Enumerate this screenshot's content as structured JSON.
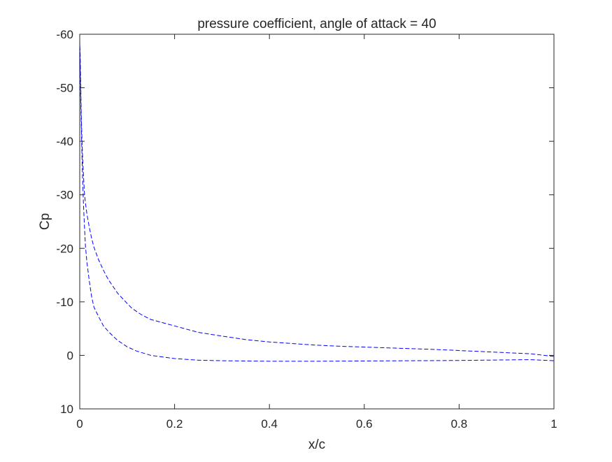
{
  "chart_data": {
    "type": "line",
    "title": "pressure coefficient, angle of attack = 40",
    "xlabel": "x/c",
    "ylabel": "Cp",
    "xlim": [
      0,
      1
    ],
    "ylim": [
      10,
      -60
    ],
    "y_axis_reversed": true,
    "grid": false,
    "legend": "none",
    "x_ticks": [
      "0",
      "0.2",
      "0.4",
      "0.6",
      "0.8",
      "1"
    ],
    "x_tick_values": [
      0,
      0.2,
      0.4,
      0.6,
      0.8,
      1
    ],
    "y_ticks": [
      "-60",
      "-50",
      "-40",
      "-30",
      "-20",
      "-10",
      "0",
      "10"
    ],
    "y_tick_values": [
      -60,
      -50,
      -40,
      -30,
      -20,
      -10,
      0,
      10
    ],
    "series": [
      {
        "line_style": "dashed",
        "color": "#0000ff",
        "x": [
          1.0,
          0.95,
          0.9,
          0.85,
          0.8,
          0.75,
          0.7,
          0.65,
          0.6,
          0.55,
          0.5,
          0.45,
          0.4,
          0.35,
          0.3,
          0.25,
          0.2,
          0.15,
          0.13,
          0.11,
          0.1,
          0.08,
          0.06,
          0.05,
          0.04,
          0.03,
          0.025,
          0.02,
          0.015,
          0.012,
          0.01,
          0.008,
          0.006,
          0.005,
          0.004,
          0.003,
          0.002,
          0.001,
          0.0
        ],
        "y": [
          0.2,
          -0.3,
          -0.5,
          -0.7,
          -0.9,
          -1.1,
          -1.25,
          -1.4,
          -1.55,
          -1.7,
          -1.9,
          -2.2,
          -2.5,
          -2.95,
          -3.6,
          -4.3,
          -5.5,
          -6.7,
          -7.6,
          -8.8,
          -9.7,
          -11.6,
          -14.2,
          -15.9,
          -17.8,
          -20.2,
          -21.9,
          -24.0,
          -26.5,
          -28.5,
          -30.2,
          -33.5,
          -37.0,
          -39.5,
          -42.5,
          -46.0,
          -51.0,
          -56.0,
          -58.5
        ]
      },
      {
        "line_style": "dashed",
        "color": "#0000ff",
        "x": [
          0.0,
          0.002,
          0.004,
          0.006,
          0.008,
          0.01,
          0.012,
          0.015,
          0.02,
          0.025,
          0.03,
          0.04,
          0.05,
          0.06,
          0.07,
          0.08,
          0.1,
          0.12,
          0.15,
          0.2,
          0.25,
          0.3,
          0.4,
          0.5,
          0.6,
          0.7,
          0.8,
          0.9,
          0.95,
          1.0
        ],
        "y": [
          -58.5,
          -48.0,
          -40.0,
          -33.0,
          -28.0,
          -24.0,
          -20.5,
          -17.5,
          -14.0,
          -11.0,
          -9.0,
          -7.2,
          -5.5,
          -4.5,
          -3.6,
          -2.8,
          -1.6,
          -0.8,
          0.0,
          0.6,
          0.9,
          1.0,
          1.1,
          1.1,
          1.05,
          1.0,
          0.95,
          0.85,
          0.8,
          1.0
        ]
      }
    ]
  }
}
